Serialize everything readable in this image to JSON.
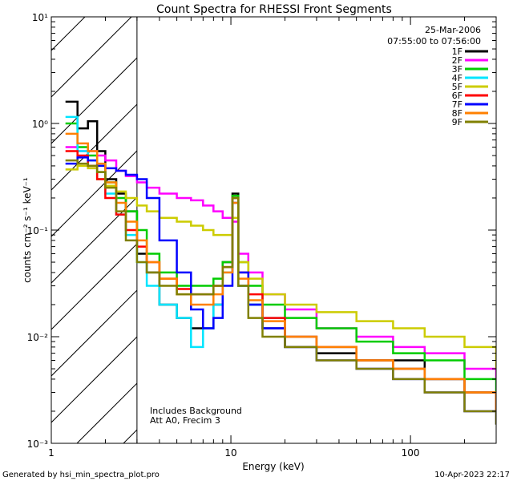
{
  "chart_data": {
    "type": "line",
    "title": "Count Spectra for RHESSI Front Segments",
    "xlabel": "Energy (keV)",
    "ylabel": "counts cm⁻² s⁻¹ keV⁻¹",
    "x_scale": "log",
    "y_scale": "log",
    "xlim": [
      1,
      300
    ],
    "ylim": [
      0.001,
      10
    ],
    "x_ticks": [
      {
        "value": 1,
        "label": "1"
      },
      {
        "value": 10,
        "label": "10"
      },
      {
        "value": 100,
        "label": "100"
      }
    ],
    "y_ticks": [
      {
        "value": 10,
        "label": "10¹"
      },
      {
        "value": 1,
        "label": "10⁰"
      },
      {
        "value": 0.1,
        "label": "10⁻¹"
      },
      {
        "value": 0.01,
        "label": "10⁻²"
      },
      {
        "value": 0.001,
        "label": "10⁻³"
      }
    ],
    "date": "25-Mar-2006",
    "time_range": "07:55:00 to 07:56:00",
    "excluded_region": {
      "x_max": 3
    },
    "annotations": [
      "Includes Background",
      "Att A0, Frecim 3"
    ],
    "series": [
      {
        "name": "1F",
        "color": "#000000",
        "x": [
          1.2,
          1.4,
          1.6,
          1.8,
          2.0,
          2.3,
          2.6,
          3.0,
          3.4,
          4.0,
          5.0,
          6.0,
          7.0,
          8.0,
          9.0,
          10.2,
          11.0,
          12.5,
          15.0,
          20.0,
          30.0,
          50.0,
          80.0,
          120.0,
          200.0,
          300.0
        ],
        "values": [
          1.6,
          0.9,
          1.05,
          0.55,
          0.3,
          0.22,
          0.15,
          0.06,
          0.04,
          0.02,
          0.015,
          0.012,
          0.012,
          0.02,
          0.05,
          0.22,
          0.03,
          0.02,
          0.012,
          0.008,
          0.007,
          0.006,
          0.006,
          0.004,
          0.003,
          0.002
        ]
      },
      {
        "name": "2F",
        "color": "#ff00ff",
        "x": [
          1.2,
          1.4,
          1.6,
          1.8,
          2.0,
          2.3,
          2.6,
          3.0,
          3.4,
          4.0,
          5.0,
          6.0,
          7.0,
          8.0,
          9.0,
          10.2,
          11.0,
          12.5,
          15.0,
          20.0,
          30.0,
          50.0,
          80.0,
          120.0,
          200.0,
          300.0
        ],
        "values": [
          0.6,
          0.55,
          0.55,
          0.5,
          0.45,
          0.36,
          0.32,
          0.28,
          0.25,
          0.22,
          0.2,
          0.19,
          0.17,
          0.15,
          0.13,
          0.12,
          0.06,
          0.04,
          0.025,
          0.018,
          0.012,
          0.01,
          0.008,
          0.007,
          0.005,
          0.004
        ]
      },
      {
        "name": "3F",
        "color": "#00cc00",
        "x": [
          1.2,
          1.4,
          1.6,
          1.8,
          2.0,
          2.3,
          2.6,
          3.0,
          3.4,
          4.0,
          5.0,
          6.0,
          7.0,
          8.0,
          9.0,
          10.2,
          11.0,
          12.5,
          15.0,
          20.0,
          30.0,
          50.0,
          80.0,
          120.0,
          200.0,
          300.0
        ],
        "values": [
          1.0,
          0.6,
          0.5,
          0.35,
          0.28,
          0.2,
          0.15,
          0.1,
          0.06,
          0.04,
          0.03,
          0.03,
          0.03,
          0.035,
          0.05,
          0.21,
          0.05,
          0.03,
          0.02,
          0.015,
          0.012,
          0.009,
          0.007,
          0.006,
          0.004,
          0.003
        ]
      },
      {
        "name": "4F",
        "color": "#00e5ff",
        "x": [
          1.2,
          1.4,
          1.6,
          1.8,
          2.0,
          2.3,
          2.6,
          3.0,
          3.4,
          4.0,
          5.0,
          6.0,
          7.0,
          8.0,
          9.0,
          10.2,
          11.0,
          12.5,
          15.0,
          20.0,
          30.0,
          50.0,
          80.0,
          120.0,
          200.0,
          300.0
        ],
        "values": [
          1.15,
          0.55,
          0.45,
          0.3,
          0.22,
          0.14,
          0.09,
          0.05,
          0.03,
          0.02,
          0.015,
          0.008,
          0.012,
          0.02,
          0.04,
          0.2,
          0.03,
          0.02,
          0.015,
          0.01,
          0.008,
          0.006,
          0.005,
          0.004,
          0.003,
          0.002
        ]
      },
      {
        "name": "5F",
        "color": "#cccc00",
        "x": [
          1.2,
          1.4,
          1.6,
          1.8,
          2.0,
          2.3,
          2.6,
          3.0,
          3.4,
          4.0,
          5.0,
          6.0,
          7.0,
          8.0,
          9.0,
          10.2,
          11.0,
          12.5,
          15.0,
          20.0,
          30.0,
          50.0,
          80.0,
          120.0,
          200.0,
          300.0
        ],
        "values": [
          0.37,
          0.4,
          0.38,
          0.3,
          0.26,
          0.23,
          0.2,
          0.17,
          0.15,
          0.13,
          0.12,
          0.11,
          0.1,
          0.09,
          0.09,
          0.13,
          0.05,
          0.035,
          0.025,
          0.02,
          0.017,
          0.014,
          0.012,
          0.01,
          0.008,
          0.005
        ]
      },
      {
        "name": "6F",
        "color": "#ff0000",
        "x": [
          1.2,
          1.4,
          1.6,
          1.8,
          2.0,
          2.3,
          2.6,
          3.0,
          3.4,
          4.0,
          5.0,
          6.0,
          7.0,
          8.0,
          9.0,
          10.2,
          11.0,
          12.5,
          15.0,
          20.0,
          30.0,
          50.0,
          80.0,
          120.0,
          200.0,
          300.0
        ],
        "values": [
          0.55,
          0.5,
          0.4,
          0.3,
          0.2,
          0.14,
          0.1,
          0.07,
          0.05,
          0.035,
          0.028,
          0.025,
          0.025,
          0.03,
          0.045,
          0.2,
          0.04,
          0.025,
          0.015,
          0.01,
          0.008,
          0.006,
          0.005,
          0.004,
          0.003,
          0.002
        ]
      },
      {
        "name": "7F",
        "color": "#0000ff",
        "x": [
          1.2,
          1.4,
          1.6,
          1.8,
          2.0,
          2.3,
          2.6,
          3.0,
          3.4,
          4.0,
          5.0,
          6.0,
          7.0,
          8.0,
          9.0,
          10.2,
          11.0,
          12.5,
          15.0,
          20.0,
          30.0,
          50.0,
          80.0,
          120.0,
          200.0,
          300.0
        ],
        "values": [
          0.42,
          0.48,
          0.45,
          0.4,
          0.38,
          0.36,
          0.33,
          0.3,
          0.2,
          0.08,
          0.04,
          0.018,
          0.012,
          0.015,
          0.03,
          0.18,
          0.04,
          0.02,
          0.012,
          0.008,
          0.006,
          0.005,
          0.004,
          0.003,
          0.002,
          0.0015
        ]
      },
      {
        "name": "8F",
        "color": "#ff8000",
        "x": [
          1.2,
          1.4,
          1.6,
          1.8,
          2.0,
          2.3,
          2.6,
          3.0,
          3.4,
          4.0,
          5.0,
          6.0,
          7.0,
          8.0,
          9.0,
          10.2,
          11.0,
          12.5,
          15.0,
          20.0,
          30.0,
          50.0,
          80.0,
          120.0,
          200.0,
          300.0
        ],
        "values": [
          0.8,
          0.65,
          0.55,
          0.42,
          0.28,
          0.18,
          0.12,
          0.08,
          0.05,
          0.035,
          0.025,
          0.02,
          0.02,
          0.025,
          0.04,
          0.18,
          0.035,
          0.022,
          0.014,
          0.01,
          0.008,
          0.006,
          0.005,
          0.004,
          0.003,
          0.002
        ]
      },
      {
        "name": "9F",
        "color": "#808000",
        "x": [
          1.2,
          1.4,
          1.6,
          1.8,
          2.0,
          2.3,
          2.6,
          3.0,
          3.4,
          4.0,
          5.0,
          6.0,
          7.0,
          8.0,
          9.0,
          10.2,
          11.0,
          12.5,
          15.0,
          20.0,
          30.0,
          50.0,
          80.0,
          120.0,
          200.0,
          300.0
        ],
        "values": [
          0.45,
          0.42,
          0.4,
          0.35,
          0.25,
          0.15,
          0.08,
          0.05,
          0.04,
          0.03,
          0.025,
          0.025,
          0.025,
          0.03,
          0.045,
          0.2,
          0.03,
          0.015,
          0.01,
          0.008,
          0.006,
          0.005,
          0.004,
          0.003,
          0.002,
          0.0015
        ]
      }
    ]
  },
  "footer": {
    "generator": "Generated by hsi_min_spectra_plot.pro",
    "timestamp": "10-Apr-2023 22:17"
  }
}
